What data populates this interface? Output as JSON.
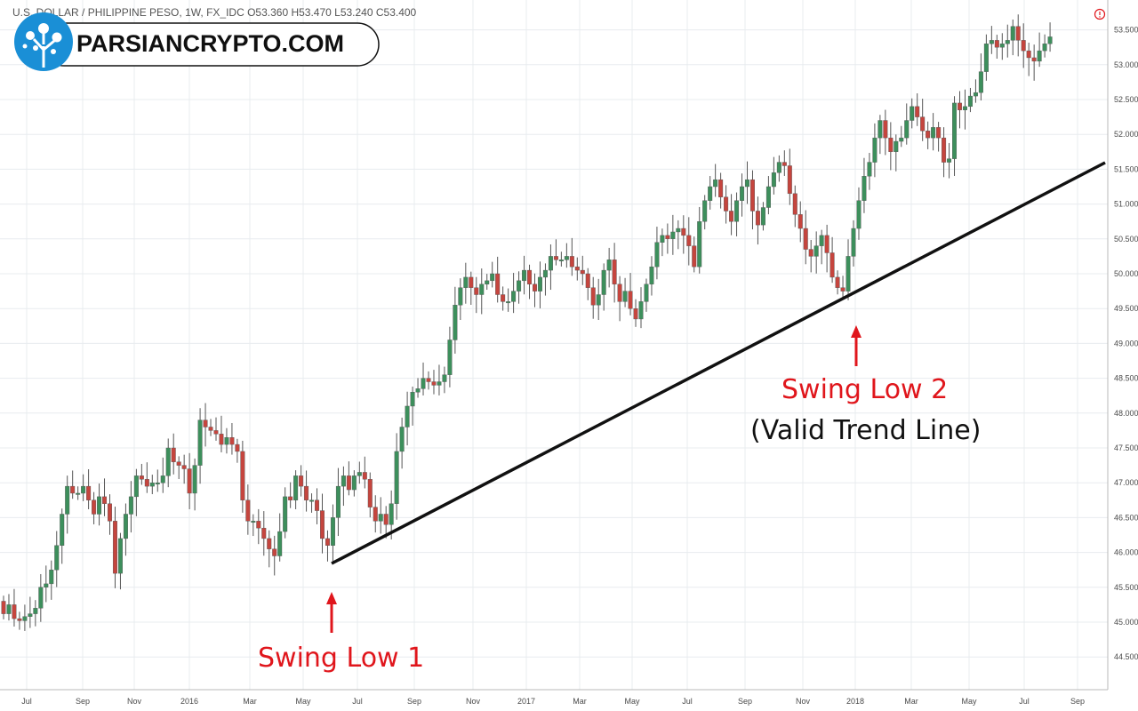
{
  "header": {
    "text": "U.S. DOLLAR / PHILIPPINE PESO, 1W, FX_IDC   O53.360 H53.470 L53.240 C53.400"
  },
  "logo": {
    "text": "PARSIANCRYPTO.COM",
    "icon": "tree-logo-icon"
  },
  "colors": {
    "up": "#3d8f5c",
    "down": "#c5453e",
    "trend": "#111111",
    "annotation": "#e0161c",
    "logo_blue": "#1a8fd6"
  },
  "chart_data": {
    "type": "candlestick",
    "title": "",
    "xlabel": "",
    "ylabel": "",
    "ylim": [
      44.2,
      53.8
    ],
    "y_ticks": [
      "44.500",
      "45.000",
      "45.500",
      "46.000",
      "46.500",
      "47.000",
      "47.500",
      "48.000",
      "48.500",
      "49.000",
      "49.500",
      "50.000",
      "50.500",
      "51.000",
      "51.500",
      "52.000",
      "52.500",
      "53.000",
      "53.500"
    ],
    "x_ticks": [
      "Jul",
      "Sep",
      "Nov",
      "2016",
      "Mar",
      "May",
      "Jul",
      "Sep",
      "Nov",
      "2017",
      "Mar",
      "May",
      "Jul",
      "Sep",
      "Nov",
      "2018",
      "Mar",
      "May",
      "Jul",
      "Sep"
    ],
    "close": [
      45.12,
      45.25,
      45.05,
      45.02,
      45.08,
      45.12,
      45.2,
      45.5,
      45.55,
      45.75,
      46.1,
      46.55,
      46.95,
      46.85,
      46.85,
      46.95,
      46.75,
      46.55,
      46.8,
      46.7,
      46.45,
      45.7,
      46.2,
      46.55,
      46.8,
      47.1,
      47.05,
      46.95,
      47.0,
      47.0,
      47.1,
      47.5,
      47.3,
      47.25,
      47.2,
      46.85,
      47.25,
      47.9,
      47.8,
      47.75,
      47.7,
      47.55,
      47.65,
      47.55,
      47.45,
      46.75,
      46.45,
      46.45,
      46.35,
      46.2,
      46.05,
      45.95,
      46.3,
      46.8,
      46.75,
      47.1,
      46.95,
      46.75,
      46.75,
      46.6,
      46.2,
      46.1,
      46.5,
      46.95,
      47.1,
      46.9,
      47.1,
      47.15,
      47.05,
      46.65,
      46.45,
      46.55,
      46.4,
      46.7,
      47.45,
      47.8,
      48.1,
      48.3,
      48.35,
      48.5,
      48.45,
      48.4,
      48.45,
      48.55,
      49.05,
      49.55,
      49.8,
      49.95,
      49.8,
      49.7,
      49.85,
      49.9,
      50.0,
      49.7,
      49.6,
      49.6,
      49.75,
      49.9,
      50.05,
      49.85,
      49.75,
      49.95,
      50.05,
      50.25,
      50.2,
      50.2,
      50.25,
      50.1,
      50.05,
      50.0,
      49.8,
      49.55,
      49.7,
      50.05,
      50.2,
      49.85,
      49.6,
      49.75,
      49.5,
      49.35,
      49.6,
      49.85,
      50.1,
      50.45,
      50.55,
      50.5,
      50.6,
      50.65,
      50.55,
      50.4,
      50.1,
      50.75,
      51.05,
      51.25,
      51.35,
      51.1,
      50.9,
      50.75,
      51.05,
      51.25,
      51.35,
      50.9,
      50.7,
      50.95,
      51.25,
      51.45,
      51.6,
      51.55,
      51.15,
      50.85,
      50.65,
      50.35,
      50.25,
      50.4,
      50.55,
      50.3,
      49.95,
      49.8,
      49.75,
      50.25,
      50.65,
      51.05,
      51.4,
      51.6,
      51.95,
      52.2,
      51.95,
      51.75,
      51.9,
      51.95,
      52.2,
      52.4,
      52.25,
      52.05,
      51.95,
      52.1,
      51.95,
      51.6,
      51.65,
      52.45,
      52.35,
      52.4,
      52.55,
      52.6,
      52.9,
      53.3,
      53.35,
      53.25,
      53.3,
      53.35,
      53.55,
      53.35,
      53.2,
      53.1,
      53.05,
      53.2,
      53.3,
      53.4
    ]
  },
  "annotations": {
    "swing_low_1": "Swing Low 1",
    "swing_low_2": "Swing Low 2",
    "valid_trend_line": "(Valid Trend Line)"
  }
}
